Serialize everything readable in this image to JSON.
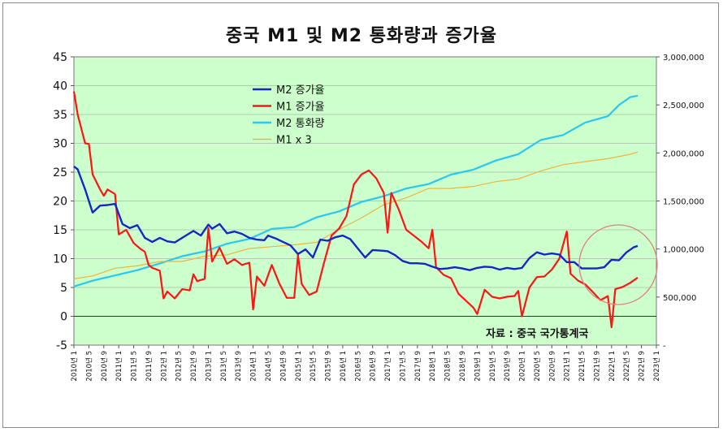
{
  "chart_data": {
    "type": "line",
    "title": "중국 M1 및 M2 통화량과 증가율",
    "source_note": "자료 : 중국 국가통계국",
    "colors": {
      "plot_bg": "#ccffcc",
      "m2_growth": "#1428c8",
      "m1_growth": "#ff1414",
      "m2_volume": "#28c8f0",
      "m1x3": "#f0b43c",
      "circle": "#e08080"
    },
    "y_left": {
      "min": -5,
      "max": 45,
      "ticks": [
        "45",
        "40",
        "35",
        "30",
        "25",
        "20",
        "15",
        "10",
        "5",
        "0",
        "-5"
      ]
    },
    "y_right": {
      "min": 0,
      "max": 3000000,
      "ticks": [
        "3,000,000",
        "2,500,000",
        "2,000,000",
        "1,500,000",
        "1,000,000",
        "500,000",
        "-"
      ]
    },
    "x_ticks": [
      "2010년 1",
      "2010년 5",
      "2010년 9",
      "2011년 1",
      "2011년 5",
      "2011년 9",
      "2012년 1",
      "2012년 5",
      "2012년 9",
      "2013년 1",
      "2013년 5",
      "2013년 9",
      "2014년 1",
      "2014년 5",
      "2014년 9",
      "2015년 1",
      "2015년 5",
      "2015년 9",
      "2016년 1",
      "2016년 5",
      "2016년 9",
      "2017년 1",
      "2017년 5",
      "2017년 9",
      "2018년 1",
      "2018년 5",
      "2018년 9",
      "2019년 1",
      "2019년 5",
      "2019년 9",
      "2020년 1",
      "2020년 5",
      "2020년 9",
      "2021년 1",
      "2021년 5",
      "2021년 9",
      "2022년 1",
      "2022년 5",
      "2022년 9",
      "2023년 1"
    ],
    "x_range": [
      "2010-01",
      "2023-01"
    ],
    "series": [
      {
        "name": "M2 증가율",
        "axis": "left",
        "points": [
          [
            "2010-01",
            26
          ],
          [
            "2010-02",
            25.5
          ],
          [
            "2010-04",
            22
          ],
          [
            "2010-06",
            18
          ],
          [
            "2010-08",
            19.2
          ],
          [
            "2010-10",
            19.3
          ],
          [
            "2010-12",
            19.5
          ],
          [
            "2011-02",
            16
          ],
          [
            "2011-04",
            15.3
          ],
          [
            "2011-06",
            15.8
          ],
          [
            "2011-08",
            13.6
          ],
          [
            "2011-10",
            12.9
          ],
          [
            "2011-12",
            13.6
          ],
          [
            "2012-02",
            13
          ],
          [
            "2012-04",
            12.8
          ],
          [
            "2012-06",
            13.6
          ],
          [
            "2012-09",
            14.8
          ],
          [
            "2012-11",
            14
          ],
          [
            "2013-01",
            15.9
          ],
          [
            "2013-02",
            15.2
          ],
          [
            "2013-04",
            16
          ],
          [
            "2013-06",
            14.4
          ],
          [
            "2013-08",
            14.7
          ],
          [
            "2013-10",
            14.3
          ],
          [
            "2013-12",
            13.6
          ],
          [
            "2014-02",
            13.3
          ],
          [
            "2014-04",
            13.2
          ],
          [
            "2014-05",
            14
          ],
          [
            "2014-07",
            13.5
          ],
          [
            "2014-09",
            12.9
          ],
          [
            "2014-11",
            12.3
          ],
          [
            "2015-01",
            10.8
          ],
          [
            "2015-03",
            11.6
          ],
          [
            "2015-05",
            10.2
          ],
          [
            "2015-07",
            13.3
          ],
          [
            "2015-09",
            13.1
          ],
          [
            "2015-11",
            13.7
          ],
          [
            "2016-01",
            14
          ],
          [
            "2016-03",
            13.4
          ],
          [
            "2016-05",
            11.8
          ],
          [
            "2016-07",
            10.2
          ],
          [
            "2016-09",
            11.5
          ],
          [
            "2016-11",
            11.4
          ],
          [
            "2017-01",
            11.3
          ],
          [
            "2017-03",
            10.6
          ],
          [
            "2017-05",
            9.6
          ],
          [
            "2017-07",
            9.2
          ],
          [
            "2017-09",
            9.2
          ],
          [
            "2017-11",
            9.1
          ],
          [
            "2018-01",
            8.6
          ],
          [
            "2018-03",
            8.2
          ],
          [
            "2018-05",
            8.3
          ],
          [
            "2018-07",
            8.5
          ],
          [
            "2018-09",
            8.3
          ],
          [
            "2018-11",
            8
          ],
          [
            "2019-01",
            8.4
          ],
          [
            "2019-03",
            8.6
          ],
          [
            "2019-05",
            8.5
          ],
          [
            "2019-07",
            8.1
          ],
          [
            "2019-09",
            8.4
          ],
          [
            "2019-11",
            8.2
          ],
          [
            "2020-01",
            8.4
          ],
          [
            "2020-03",
            10.1
          ],
          [
            "2020-05",
            11.1
          ],
          [
            "2020-07",
            10.7
          ],
          [
            "2020-09",
            10.9
          ],
          [
            "2020-11",
            10.7
          ],
          [
            "2021-01",
            9.4
          ],
          [
            "2021-03",
            9.4
          ],
          [
            "2021-05",
            8.3
          ],
          [
            "2021-07",
            8.3
          ],
          [
            "2021-09",
            8.3
          ],
          [
            "2021-11",
            8.5
          ],
          [
            "2022-01",
            9.8
          ],
          [
            "2022-03",
            9.7
          ],
          [
            "2022-05",
            11.1
          ],
          [
            "2022-07",
            12
          ],
          [
            "2022-08",
            12.2
          ]
        ]
      },
      {
        "name": "M1 증가율",
        "axis": "left",
        "points": [
          [
            "2010-01",
            39
          ],
          [
            "2010-02",
            35
          ],
          [
            "2010-04",
            30
          ],
          [
            "2010-05",
            29.9
          ],
          [
            "2010-06",
            24.6
          ],
          [
            "2010-08",
            22
          ],
          [
            "2010-09",
            20.9
          ],
          [
            "2010-10",
            22
          ],
          [
            "2010-12",
            21.2
          ],
          [
            "2011-01",
            14.2
          ],
          [
            "2011-03",
            15
          ],
          [
            "2011-05",
            12.7
          ],
          [
            "2011-07",
            11.6
          ],
          [
            "2011-08",
            11.2
          ],
          [
            "2011-09",
            8.9
          ],
          [
            "2011-10",
            8.4
          ],
          [
            "2011-12",
            7.9
          ],
          [
            "2012-01",
            3.1
          ],
          [
            "2012-02",
            4.3
          ],
          [
            "2012-04",
            3.1
          ],
          [
            "2012-06",
            4.7
          ],
          [
            "2012-08",
            4.5
          ],
          [
            "2012-09",
            7.3
          ],
          [
            "2012-10",
            6.1
          ],
          [
            "2012-12",
            6.5
          ],
          [
            "2013-01",
            15.3
          ],
          [
            "2013-02",
            9.5
          ],
          [
            "2013-04",
            11.9
          ],
          [
            "2013-06",
            9.1
          ],
          [
            "2013-08",
            9.9
          ],
          [
            "2013-10",
            8.9
          ],
          [
            "2013-12",
            9.3
          ],
          [
            "2014-01",
            1.2
          ],
          [
            "2014-02",
            6.9
          ],
          [
            "2014-04",
            5.3
          ],
          [
            "2014-06",
            8.9
          ],
          [
            "2014-08",
            5.7
          ],
          [
            "2014-10",
            3.2
          ],
          [
            "2014-12",
            3.2
          ],
          [
            "2015-01",
            10.6
          ],
          [
            "2015-02",
            5.6
          ],
          [
            "2015-04",
            3.7
          ],
          [
            "2015-06",
            4.3
          ],
          [
            "2015-08",
            9.3
          ],
          [
            "2015-10",
            14
          ],
          [
            "2015-12",
            15.2
          ],
          [
            "2016-02",
            17.4
          ],
          [
            "2016-04",
            22.9
          ],
          [
            "2016-06",
            24.6
          ],
          [
            "2016-08",
            25.3
          ],
          [
            "2016-10",
            23.9
          ],
          [
            "2016-12",
            21.4
          ],
          [
            "2017-01",
            14.5
          ],
          [
            "2017-02",
            21.4
          ],
          [
            "2017-04",
            18.5
          ],
          [
            "2017-06",
            15
          ],
          [
            "2017-08",
            14
          ],
          [
            "2017-10",
            13
          ],
          [
            "2017-12",
            11.8
          ],
          [
            "2018-01",
            15
          ],
          [
            "2018-02",
            8.5
          ],
          [
            "2018-04",
            7.2
          ],
          [
            "2018-06",
            6.6
          ],
          [
            "2018-08",
            3.9
          ],
          [
            "2018-10",
            2.7
          ],
          [
            "2018-12",
            1.5
          ],
          [
            "2019-01",
            0.4
          ],
          [
            "2019-03",
            4.6
          ],
          [
            "2019-05",
            3.4
          ],
          [
            "2019-07",
            3.1
          ],
          [
            "2019-09",
            3.4
          ],
          [
            "2019-11",
            3.5
          ],
          [
            "2019-12",
            4.4
          ],
          [
            "2020-01",
            0
          ],
          [
            "2020-03",
            5
          ],
          [
            "2020-05",
            6.8
          ],
          [
            "2020-07",
            6.9
          ],
          [
            "2020-09",
            8.1
          ],
          [
            "2020-11",
            10
          ],
          [
            "2021-01",
            14.7
          ],
          [
            "2021-02",
            7.4
          ],
          [
            "2021-04",
            6.2
          ],
          [
            "2021-06",
            5.5
          ],
          [
            "2021-08",
            4.2
          ],
          [
            "2021-10",
            2.8
          ],
          [
            "2021-12",
            3.5
          ],
          [
            "2022-01",
            -1.9
          ],
          [
            "2022-02",
            4.7
          ],
          [
            "2022-04",
            5.1
          ],
          [
            "2022-06",
            5.8
          ],
          [
            "2022-08",
            6.7
          ]
        ]
      },
      {
        "name": "M2 통화량",
        "axis": "right",
        "points": [
          [
            "2010-01",
            610000
          ],
          [
            "2010-06",
            670000
          ],
          [
            "2010-12",
            725000
          ],
          [
            "2011-06",
            780000
          ],
          [
            "2011-12",
            850000
          ],
          [
            "2012-06",
            925000
          ],
          [
            "2012-12",
            975000
          ],
          [
            "2013-06",
            1055000
          ],
          [
            "2013-12",
            1105000
          ],
          [
            "2014-06",
            1210000
          ],
          [
            "2014-12",
            1228000
          ],
          [
            "2015-06",
            1330000
          ],
          [
            "2015-12",
            1392000
          ],
          [
            "2016-06",
            1490000
          ],
          [
            "2016-12",
            1550000
          ],
          [
            "2017-06",
            1630000
          ],
          [
            "2017-12",
            1676000
          ],
          [
            "2018-06",
            1775000
          ],
          [
            "2018-12",
            1826000
          ],
          [
            "2019-06",
            1921000
          ],
          [
            "2019-12",
            1987000
          ],
          [
            "2020-06",
            2134000
          ],
          [
            "2020-12",
            2186000
          ],
          [
            "2021-06",
            2317000
          ],
          [
            "2021-12",
            2382000
          ],
          [
            "2022-03",
            2499000
          ],
          [
            "2022-06",
            2581000
          ],
          [
            "2022-08",
            2595000
          ]
        ]
      },
      {
        "name": "M1 x 3",
        "axis": "right",
        "points": [
          [
            "2010-01",
            690000
          ],
          [
            "2010-06",
            720000
          ],
          [
            "2010-12",
            800000
          ],
          [
            "2011-06",
            825000
          ],
          [
            "2011-12",
            870000
          ],
          [
            "2012-06",
            870000
          ],
          [
            "2012-12",
            925000
          ],
          [
            "2013-06",
            940000
          ],
          [
            "2013-12",
            1005000
          ],
          [
            "2014-06",
            1025000
          ],
          [
            "2014-12",
            1044000
          ],
          [
            "2015-06",
            1070000
          ],
          [
            "2015-12",
            1203000
          ],
          [
            "2016-06",
            1323000
          ],
          [
            "2016-12",
            1461000
          ],
          [
            "2017-06",
            1532000
          ],
          [
            "2017-12",
            1630000
          ],
          [
            "2018-06",
            1631000
          ],
          [
            "2018-12",
            1651000
          ],
          [
            "2019-06",
            1701000
          ],
          [
            "2019-12",
            1729000
          ],
          [
            "2020-06",
            1812000
          ],
          [
            "2020-12",
            1878000
          ],
          [
            "2021-06",
            1910000
          ],
          [
            "2021-12",
            1940000
          ],
          [
            "2022-06",
            1986000
          ],
          [
            "2022-08",
            2010000
          ]
        ]
      }
    ]
  }
}
